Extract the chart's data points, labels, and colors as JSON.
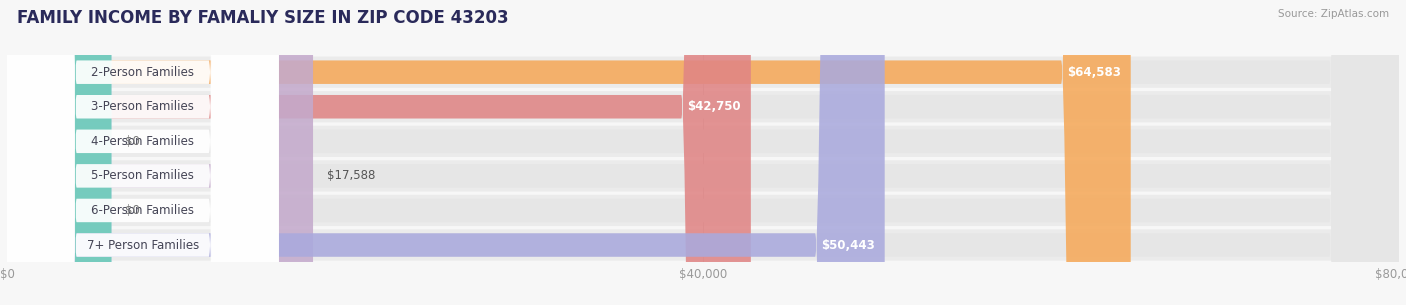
{
  "title": "FAMILY INCOME BY FAMALIY SIZE IN ZIP CODE 43203",
  "source": "Source: ZipAtlas.com",
  "categories": [
    "2-Person Families",
    "3-Person Families",
    "4-Person Families",
    "5-Person Families",
    "6-Person Families",
    "7+ Person Families"
  ],
  "values": [
    64583,
    42750,
    0,
    17588,
    0,
    50443
  ],
  "bar_colors": [
    "#F5A95A",
    "#E08585",
    "#A8C8E8",
    "#C4AACC",
    "#6DCBB8",
    "#AAAADD"
  ],
  "xlim": [
    0,
    80000
  ],
  "xtick_labels": [
    "$0",
    "$40,000",
    "$80,000"
  ],
  "background_color": "#f7f7f7",
  "bar_bg_color": "#e6e6e6",
  "row_bg_color": "#efefef",
  "title_fontsize": 12,
  "label_fontsize": 8.5,
  "value_fontsize": 8.5,
  "title_color": "#2a2a5a",
  "source_color": "#999999"
}
